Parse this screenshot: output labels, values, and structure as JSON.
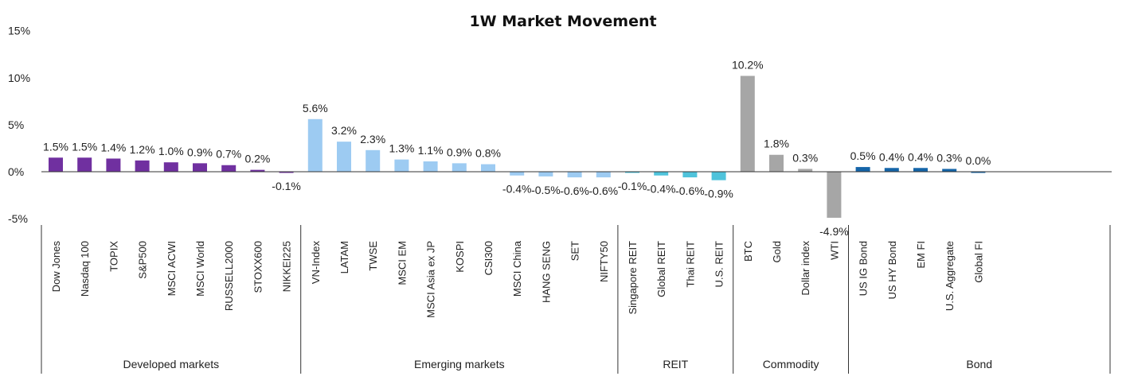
{
  "chart_data": {
    "type": "bar",
    "title": "1W Market Movement",
    "xlabel": "",
    "ylabel": "",
    "ylim": [
      -5,
      15
    ],
    "yticks": [
      "15%",
      "10%",
      "5%",
      "0%",
      "-5%"
    ],
    "ytick_values": [
      15,
      10,
      5,
      0,
      -5
    ],
    "grid": false,
    "legend": "none",
    "groups": [
      {
        "name": "Developed  markets",
        "color": "#7030A0",
        "categories": [
          "Dow Jones",
          "Nasdaq 100",
          "TOPIX",
          "S&P500",
          "MSCI ACWI",
          "MSCI World",
          "RUSSELL2000",
          "STOXX600",
          "NIKKEI225"
        ],
        "values": [
          1.5,
          1.5,
          1.4,
          1.2,
          1.0,
          0.9,
          0.7,
          0.2,
          -0.1
        ],
        "labels": [
          "1.5%",
          "1.5%",
          "1.4%",
          "1.2%",
          "1.0%",
          "0.9%",
          "0.7%",
          "0.2%",
          "-0.1%"
        ]
      },
      {
        "name": "Emerging markets",
        "color": "#9DCBF2",
        "categories": [
          "VN-Index",
          "LATAM",
          "TWSE",
          "MSCI EM",
          "MSCI Asia ex JP",
          "KOSPI",
          "CSI300",
          "MSCI China",
          "HANG SENG",
          "SET",
          "NIFTY50"
        ],
        "values": [
          5.6,
          3.2,
          2.3,
          1.3,
          1.1,
          0.9,
          0.8,
          -0.4,
          -0.5,
          -0.6,
          -0.6
        ],
        "labels": [
          "5.6%",
          "3.2%",
          "2.3%",
          "1.3%",
          "1.1%",
          "0.9%",
          "0.8%",
          "-0.4%",
          "-0.5%",
          "-0.6%",
          "-0.6%"
        ]
      },
      {
        "name": "REIT",
        "color": "#4FC3DB",
        "categories": [
          "Singapore REIT",
          "Global REIT",
          "Thai REIT",
          "U.S. REIT"
        ],
        "values": [
          -0.1,
          -0.4,
          -0.6,
          -0.9
        ],
        "labels": [
          "-0.1%",
          "-0.4%",
          "-0.6%",
          "-0.9%"
        ]
      },
      {
        "name": "Commodity",
        "color": "#A6A6A6",
        "categories": [
          "BTC",
          "Gold",
          "Dollar index",
          "WTI"
        ],
        "values": [
          10.2,
          1.8,
          0.3,
          -4.9
        ],
        "labels": [
          "10.2%",
          "1.8%",
          "0.3%",
          "-4.9%"
        ]
      },
      {
        "name": "Bond",
        "color": "#1565A8",
        "categories": [
          "US IG Bond",
          "US HY Bond",
          "EM FI",
          "U.S. Aggregate",
          "Global FI"
        ],
        "values": [
          0.5,
          0.4,
          0.4,
          0.3,
          0.0
        ],
        "labels": [
          "0.5%",
          "0.4%",
          "0.4%",
          "0.3%",
          "0.0%"
        ]
      }
    ]
  }
}
